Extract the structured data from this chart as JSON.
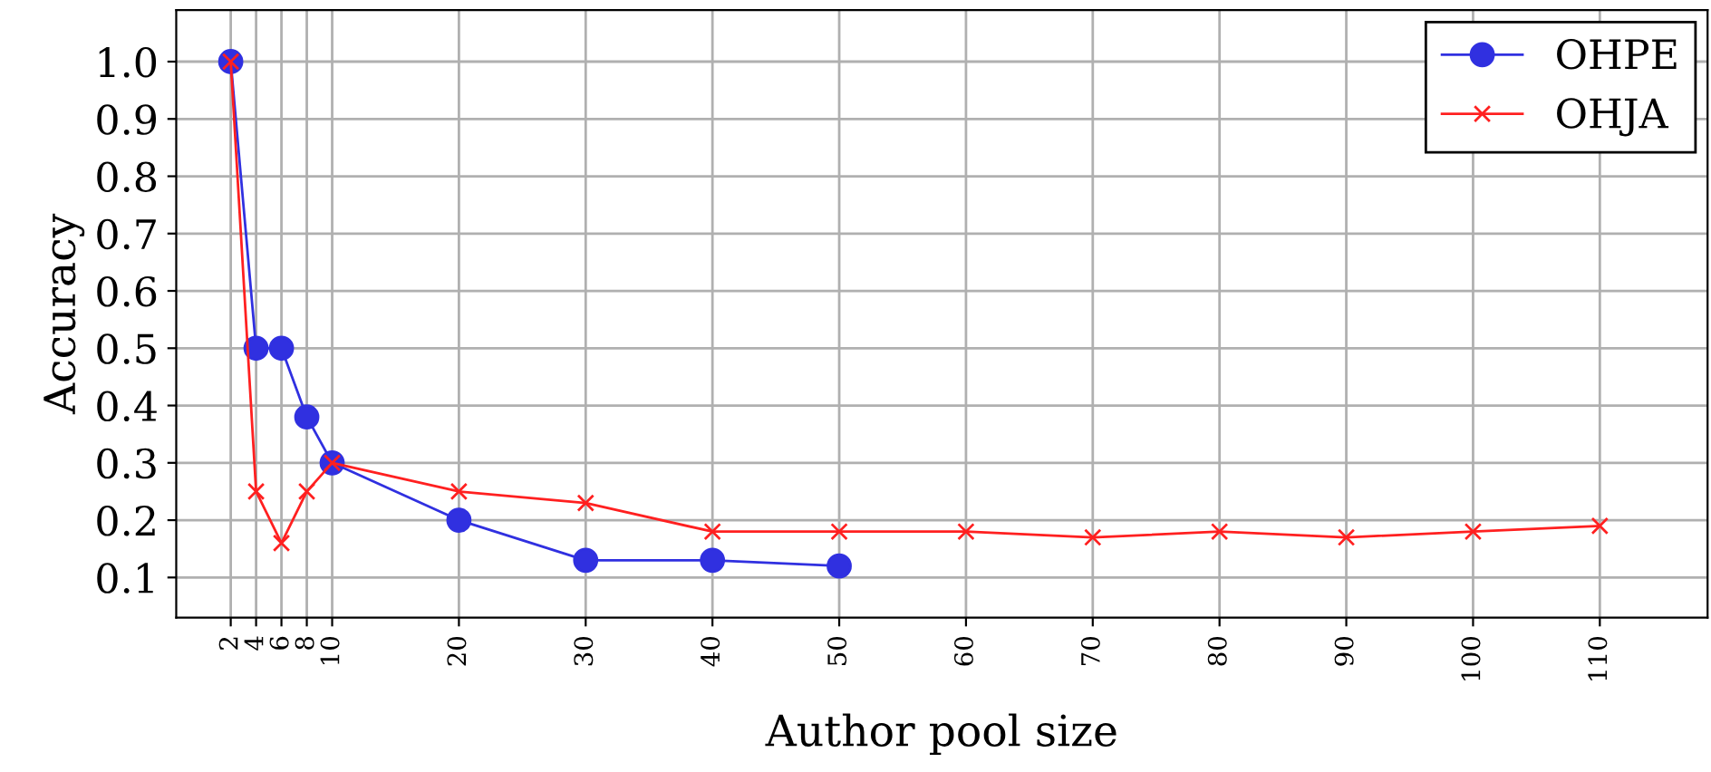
{
  "chart_data": {
    "type": "line",
    "xlabel": "Author pool size",
    "ylabel": "Accuracy",
    "xlim": [
      -2.3,
      118.5
    ],
    "ylim": [
      0.03,
      1.09
    ],
    "xticks": [
      2,
      4,
      6,
      8,
      10,
      20,
      30,
      40,
      50,
      60,
      70,
      80,
      90,
      100,
      110
    ],
    "yticks": [
      0.1,
      0.2,
      0.3,
      0.4,
      0.5,
      0.6,
      0.7,
      0.8,
      0.9,
      {
        "value": 1.0,
        "label": "1.0"
      }
    ],
    "grid": true,
    "legend": "top right",
    "series": [
      {
        "name": "OHPE",
        "color": "#3030e0",
        "marker": "circle",
        "x": [
          2,
          4,
          6,
          8,
          10,
          20,
          30,
          40,
          50
        ],
        "values": [
          1.0,
          0.5,
          0.5,
          0.38,
          0.3,
          0.2,
          0.13,
          0.13,
          0.12
        ]
      },
      {
        "name": "OHJA",
        "color": "#ff2020",
        "marker": "cross",
        "x": [
          2,
          4,
          6,
          8,
          10,
          20,
          30,
          40,
          50,
          60,
          70,
          80,
          90,
          100,
          110
        ],
        "values": [
          1.0,
          0.25,
          0.16,
          0.25,
          0.3,
          0.25,
          0.23,
          0.18,
          0.18,
          0.18,
          0.17,
          0.18,
          0.17,
          0.18,
          0.19
        ]
      }
    ]
  }
}
